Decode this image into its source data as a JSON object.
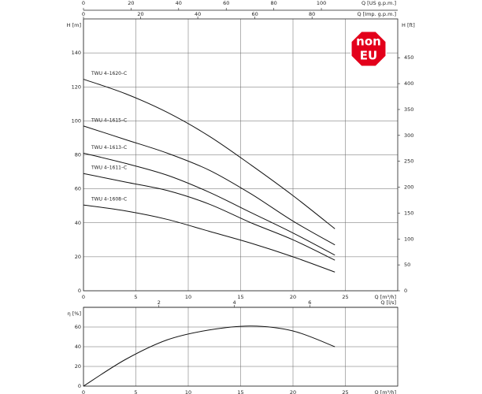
{
  "chart_data": [
    {
      "type": "line",
      "ylabel": "H [m]",
      "y2label": "H [ft]",
      "xlabel": "Q [m³/h]",
      "xlim": [
        0,
        30
      ],
      "xticks": [
        0,
        5,
        10,
        15,
        20,
        25
      ],
      "ylim": [
        0,
        160
      ],
      "yticks": [
        0,
        20,
        40,
        60,
        80,
        100,
        120,
        140
      ],
      "y2lim": [
        0,
        524.9
      ],
      "y2ticks": [
        0,
        50,
        100,
        150,
        200,
        250,
        300,
        350,
        400,
        450
      ],
      "top_axes": [
        {
          "label": "Q [US g.p.m.]",
          "lim": [
            0,
            132.1
          ],
          "ticks": [
            0,
            20,
            40,
            60,
            80,
            100
          ]
        },
        {
          "label": "Q [Imp. g.p.m.]",
          "lim": [
            0,
            110
          ],
          "ticks": [
            0,
            20,
            40,
            60,
            80
          ]
        }
      ],
      "grid": true,
      "badge": [
        "non",
        "EU"
      ],
      "badge_color": "#e3001b",
      "series": [
        {
          "name": "TWU 4–1620–C",
          "color": "#111111",
          "x": [
            0,
            4,
            8,
            12,
            16,
            20,
            24
          ],
          "values": [
            124.5,
            116,
            105,
            91,
            74,
            56,
            36.5
          ]
        },
        {
          "name": "TWU 4–1615–C",
          "color": "#111111",
          "x": [
            0,
            4,
            8,
            12,
            16,
            20,
            24
          ],
          "values": [
            97,
            89,
            81,
            71,
            57,
            41,
            27
          ]
        },
        {
          "name": "TWU 4–1613–C",
          "color": "#111111",
          "x": [
            0,
            4,
            8,
            12,
            16,
            20,
            24
          ],
          "values": [
            81,
            75,
            68,
            58,
            46,
            34,
            21
          ]
        },
        {
          "name": "TWU 4–1611–C",
          "color": "#111111",
          "x": [
            0,
            4,
            8,
            12,
            16,
            20,
            24
          ],
          "values": [
            69,
            64,
            59,
            51,
            40,
            30,
            18
          ]
        },
        {
          "name": "TWU 4–1608–C",
          "color": "#111111",
          "x": [
            0,
            4,
            8,
            12,
            16,
            20,
            24
          ],
          "values": [
            50.5,
            47,
            42,
            35,
            28,
            20,
            11
          ]
        }
      ]
    },
    {
      "type": "line",
      "ylabel": "η [%]",
      "xlabel": "Q [m³/h]",
      "xlim": [
        0,
        30
      ],
      "xticks": [
        0,
        5,
        10,
        15,
        20,
        25
      ],
      "ylim": [
        0,
        80
      ],
      "yticks": [
        0,
        20,
        40,
        60
      ],
      "top_axes": [
        {
          "label": "Q [l/s]",
          "lim": [
            0,
            8.333
          ],
          "ticks": [
            2,
            4,
            6
          ]
        }
      ],
      "grid": true,
      "series": [
        {
          "color": "#111111",
          "x": [
            0,
            4,
            8,
            12,
            16,
            20,
            24
          ],
          "values": [
            0,
            27,
            47,
            57,
            61,
            56,
            40
          ]
        }
      ]
    }
  ]
}
